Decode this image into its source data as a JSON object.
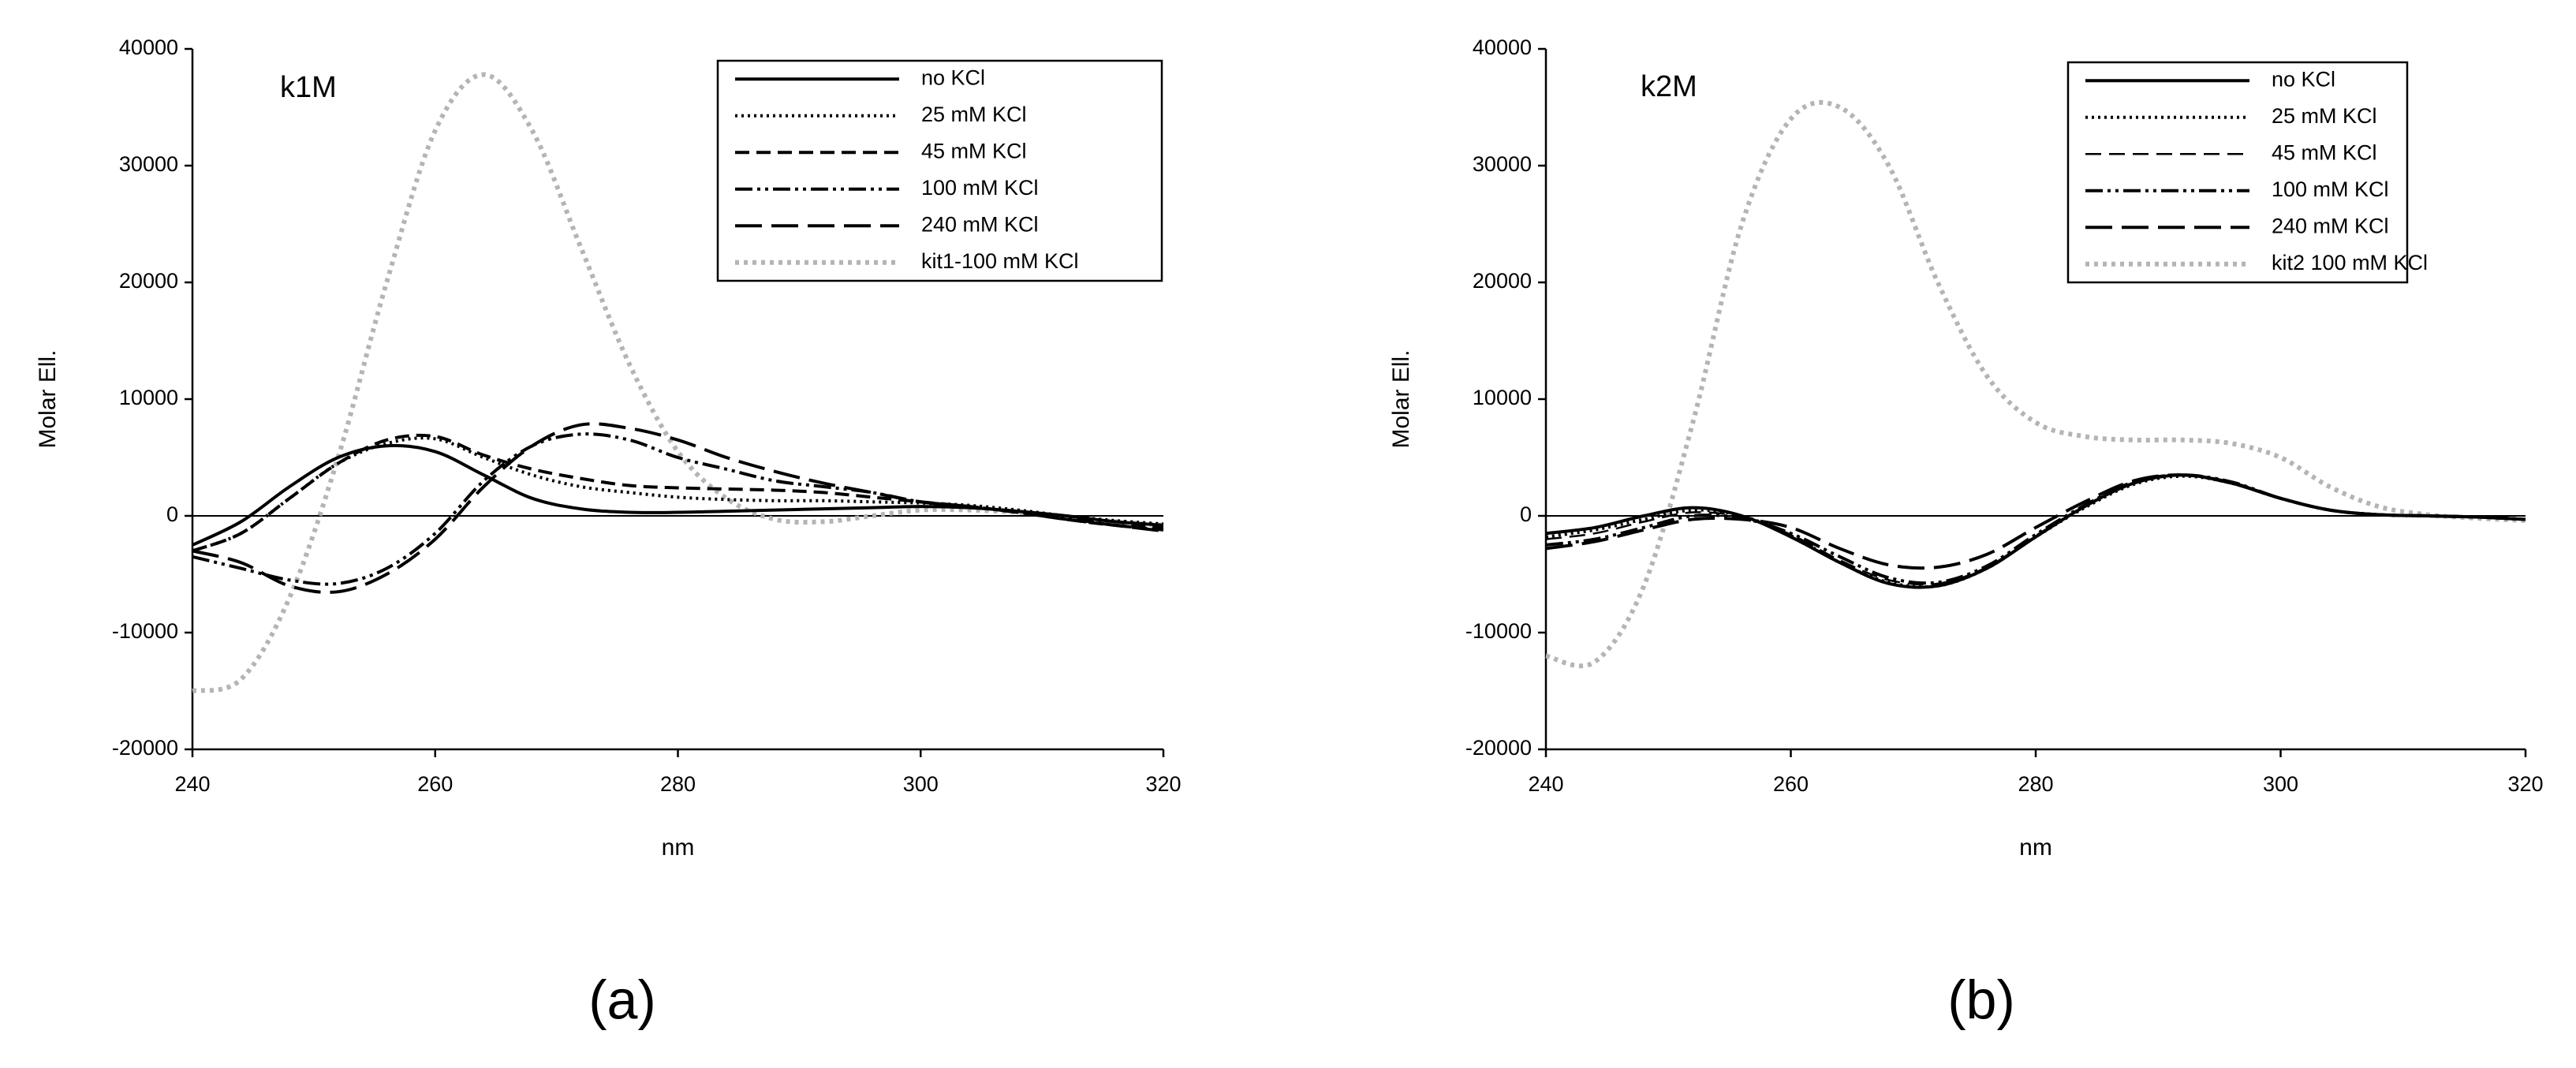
{
  "chart_data": [
    {
      "type": "line",
      "annotation": "k1M",
      "caption": "(a)",
      "xlabel": "nm",
      "ylabel": "Molar Ell.",
      "xlim": [
        240,
        320
      ],
      "ylim": [
        -20000,
        40000
      ],
      "xticks": [
        240,
        260,
        280,
        300,
        320
      ],
      "yticks": [
        -20000,
        -10000,
        0,
        10000,
        20000,
        30000,
        40000
      ],
      "x": [
        240,
        244,
        248,
        252,
        256,
        260,
        264,
        268,
        272,
        276,
        280,
        284,
        288,
        292,
        296,
        300,
        304,
        308,
        312,
        316,
        320
      ],
      "series": [
        {
          "name": "no KCl",
          "color": "#000000",
          "dash": "solid",
          "values": [
            -2500,
            -500,
            2500,
            5000,
            6000,
            5500,
            3500,
            1500,
            600,
            300,
            300,
            400,
            500,
            600,
            700,
            800,
            700,
            400,
            0,
            -500,
            -800
          ]
        },
        {
          "name": "25 mM KCl",
          "color": "#000000",
          "dash": "dotted",
          "values": [
            -3000,
            -1500,
            1500,
            4500,
            6200,
            6600,
            5000,
            3500,
            2500,
            2000,
            1600,
            1400,
            1300,
            1300,
            1200,
            1100,
            900,
            500,
            0,
            -400,
            -700
          ]
        },
        {
          "name": "45 mM KCl",
          "color": "#000000",
          "dash": "dashed",
          "values": [
            -3000,
            -1500,
            1500,
            4500,
            6500,
            6800,
            5200,
            4000,
            3200,
            2600,
            2400,
            2300,
            2200,
            2000,
            1600,
            1200,
            800,
            300,
            -300,
            -800,
            -1000
          ]
        },
        {
          "name": "100 mM KCl",
          "color": "#000000",
          "dash": "dashdotdot",
          "values": [
            -3500,
            -4500,
            -5500,
            -5800,
            -4500,
            -1500,
            3000,
            6000,
            7000,
            6500,
            5000,
            4000,
            3000,
            2500,
            2000,
            1200,
            800,
            300,
            -200,
            -800,
            -1200
          ]
        },
        {
          "name": "240 mM KCl",
          "color": "#000000",
          "dash": "longdash",
          "values": [
            -3000,
            -4000,
            -6000,
            -6500,
            -5000,
            -2000,
            2500,
            6000,
            7800,
            7500,
            6500,
            5000,
            3800,
            2800,
            2000,
            1200,
            800,
            300,
            -300,
            -800,
            -1300
          ]
        },
        {
          "name": "kit1-100 mM KCl",
          "color": "#b4b4b4",
          "dash": "graydot",
          "values": [
            -15000,
            -14000,
            -7000,
            5000,
            20000,
            33000,
            37800,
            33000,
            23000,
            13000,
            5500,
            1500,
            -300,
            -500,
            0,
            500,
            500,
            300,
            -100,
            -500,
            -800
          ]
        }
      ]
    },
    {
      "type": "line",
      "annotation": "k2M",
      "caption": "(b)",
      "xlabel": "nm",
      "ylabel": "Molar Ell.",
      "xlim": [
        240,
        320
      ],
      "ylim": [
        -20000,
        40000
      ],
      "xticks": [
        240,
        260,
        280,
        300,
        320
      ],
      "yticks": [
        -20000,
        -10000,
        0,
        10000,
        20000,
        30000,
        40000
      ],
      "x": [
        240,
        244,
        248,
        252,
        256,
        260,
        264,
        268,
        272,
        276,
        280,
        284,
        288,
        292,
        296,
        300,
        304,
        308,
        312,
        316,
        320
      ],
      "series": [
        {
          "name": "no KCl",
          "color": "#000000",
          "dash": "solid",
          "values": [
            -1500,
            -1000,
            0,
            700,
            0,
            -1800,
            -4000,
            -5800,
            -6000,
            -4500,
            -1800,
            800,
            2800,
            3500,
            2800,
            1500,
            500,
            100,
            0,
            -100,
            -300
          ]
        },
        {
          "name": "25 mM KCl",
          "color": "#000000",
          "dash": "dotted",
          "values": [
            -1800,
            -1200,
            -300,
            500,
            0,
            -1700,
            -4000,
            -5700,
            -6000,
            -4500,
            -1800,
            700,
            2700,
            3400,
            2800,
            1500,
            500,
            100,
            0,
            -100,
            -300
          ]
        },
        {
          "name": "45 mM KCl",
          "color": "#000000",
          "dash": "thindash",
          "values": [
            -2000,
            -1500,
            -500,
            300,
            -100,
            -1600,
            -3800,
            -5500,
            -5800,
            -4400,
            -1700,
            800,
            2800,
            3500,
            2900,
            1500,
            500,
            100,
            0,
            -100,
            -300
          ]
        },
        {
          "name": "100 mM KCl",
          "color": "#000000",
          "dash": "dashdotdot",
          "values": [
            -2500,
            -2000,
            -1000,
            0,
            -200,
            -1500,
            -3500,
            -5300,
            -5700,
            -4300,
            -1600,
            900,
            2900,
            3500,
            2900,
            1500,
            500,
            100,
            0,
            -100,
            -300
          ]
        },
        {
          "name": "240 mM KCl",
          "color": "#000000",
          "dash": "longdash",
          "values": [
            -2800,
            -2200,
            -1200,
            -300,
            -300,
            -1000,
            -2800,
            -4200,
            -4400,
            -3300,
            -1000,
            1200,
            3000,
            3500,
            2800,
            1500,
            500,
            100,
            0,
            -100,
            -300
          ]
        },
        {
          "name": "kit2 100 mM KCl",
          "color": "#b4b4b4",
          "dash": "graydot",
          "values": [
            -12000,
            -12500,
            -6000,
            8000,
            25000,
            34000,
            35000,
            30000,
            20000,
            12000,
            8000,
            6800,
            6500,
            6500,
            6200,
            5000,
            2500,
            800,
            100,
            -200,
            -400
          ]
        }
      ]
    }
  ]
}
